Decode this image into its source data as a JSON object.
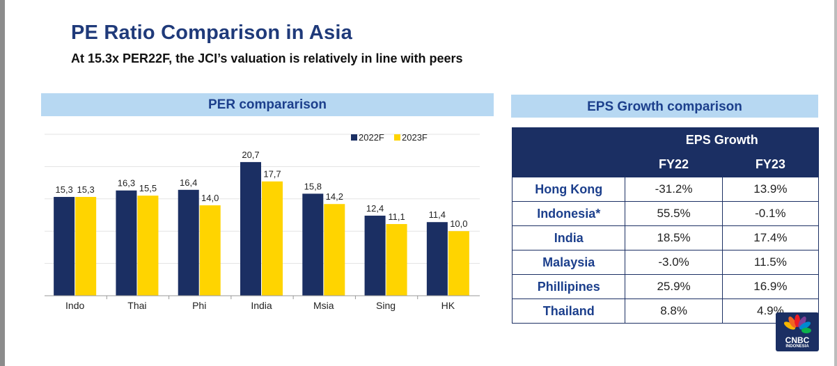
{
  "title": "PE Ratio Comparison in Asia",
  "subtitle": "At 15.3x PER22F, the JCI’s valuation is relatively in line with peers",
  "per_section": {
    "header": "PER compararison"
  },
  "eps_section": {
    "header": "EPS Growth comparison",
    "group_header": "EPS Growth",
    "col1": "FY22",
    "col2": "FY23",
    "rows": [
      {
        "country": "Hong Kong",
        "fy22": "-31.2%",
        "fy23": "13.9%"
      },
      {
        "country": "Indonesia*",
        "fy22": "55.5%",
        "fy23": "-0.1%"
      },
      {
        "country": "India",
        "fy22": "18.5%",
        "fy23": "17.4%"
      },
      {
        "country": "Malaysia",
        "fy22": "-3.0%",
        "fy23": "11.5%"
      },
      {
        "country": "Phillipines",
        "fy22": "25.9%",
        "fy23": "16.9%"
      },
      {
        "country": "Thailand",
        "fy22": "8.8%",
        "fy23": "4.9%"
      }
    ]
  },
  "logo": {
    "line1": "CNBC",
    "line2": "INDONESIA"
  },
  "colors": {
    "navy": "#1b2f63",
    "yellow": "#ffd400",
    "band": "#b7d8f2",
    "accent": "#1c3f8c"
  },
  "chart_data": {
    "type": "bar",
    "title": "PER compararison",
    "categories": [
      "Indo",
      "Thai",
      "Phi",
      "India",
      "Msia",
      "Sing",
      "HK"
    ],
    "series": [
      {
        "name": "2022F",
        "values": [
          15.3,
          16.3,
          16.4,
          20.7,
          15.8,
          12.4,
          11.4
        ],
        "labels": [
          "15,3",
          "16,3",
          "16,4",
          "20,7",
          "15,8",
          "12,4",
          "11,4"
        ]
      },
      {
        "name": "2023F",
        "values": [
          15.3,
          15.5,
          14.0,
          17.7,
          14.2,
          11.1,
          10.0
        ],
        "labels": [
          "15,3",
          "15,5",
          "14,0",
          "17,7",
          "14,2",
          "11,1",
          "10,0"
        ]
      }
    ],
    "ylim": [
      0,
      25
    ],
    "grid": true,
    "legend": "top-right",
    "xlabel": "",
    "ylabel": ""
  }
}
